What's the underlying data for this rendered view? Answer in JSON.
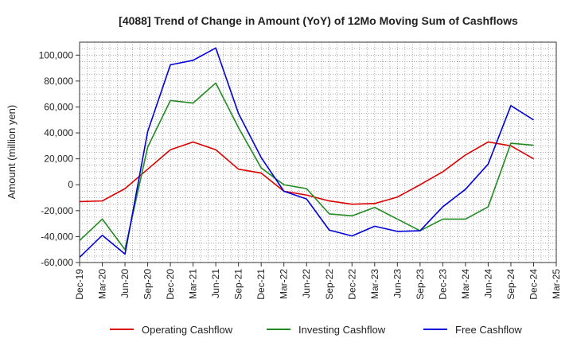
{
  "chart_data": {
    "type": "line",
    "title": "[4088]  Trend of Change in Amount (YoY) of 12Mo Moving Sum of Cashflows",
    "xlabel": "",
    "ylabel": "Amount (million yen)",
    "ylim": [
      -60000,
      110000
    ],
    "yticks": [
      -60000,
      -40000,
      -20000,
      0,
      20000,
      40000,
      60000,
      80000,
      100000
    ],
    "ytick_labels": [
      "-60,000",
      "-40,000",
      "-20,000",
      "0",
      "20,000",
      "40,000",
      "60,000",
      "80,000",
      "100,000"
    ],
    "categories": [
      "Dec-19",
      "Mar-20",
      "Jun-20",
      "Sep-20",
      "Dec-20",
      "Mar-21",
      "Jun-21",
      "Sep-21",
      "Dec-21",
      "Mar-22",
      "Jun-22",
      "Sep-22",
      "Dec-22",
      "Mar-23",
      "Jun-23",
      "Sep-23",
      "Dec-23",
      "Mar-24",
      "Jun-24",
      "Sep-24",
      "Dec-24",
      "Mar-25"
    ],
    "grid": true,
    "legend_position": "bottom",
    "series": [
      {
        "name": "Operating Cashflow",
        "color": "#dd0000",
        "values": [
          -13000,
          -12500,
          -3000,
          12000,
          27000,
          33000,
          27000,
          12000,
          9000,
          -5000,
          -8000,
          -12500,
          -15000,
          -14500,
          -9500,
          0,
          10000,
          23000,
          33000,
          30000,
          20000,
          null
        ]
      },
      {
        "name": "Investing Cashflow",
        "color": "#228b22",
        "values": [
          -43000,
          -26500,
          -50000,
          29000,
          65000,
          63000,
          78500,
          44000,
          13000,
          0,
          -3000,
          -22500,
          -24000,
          -17500,
          -26500,
          -35500,
          -26500,
          -26500,
          -17000,
          32000,
          30500,
          null
        ]
      },
      {
        "name": "Free Cashflow",
        "color": "#0000dd",
        "values": [
          -56000,
          -39000,
          -53500,
          41000,
          92500,
          96000,
          105500,
          55000,
          21000,
          -5000,
          -11000,
          -35000,
          -39500,
          -32000,
          -36000,
          -35500,
          -17000,
          -3500,
          16000,
          61000,
          50000,
          null
        ]
      }
    ]
  }
}
